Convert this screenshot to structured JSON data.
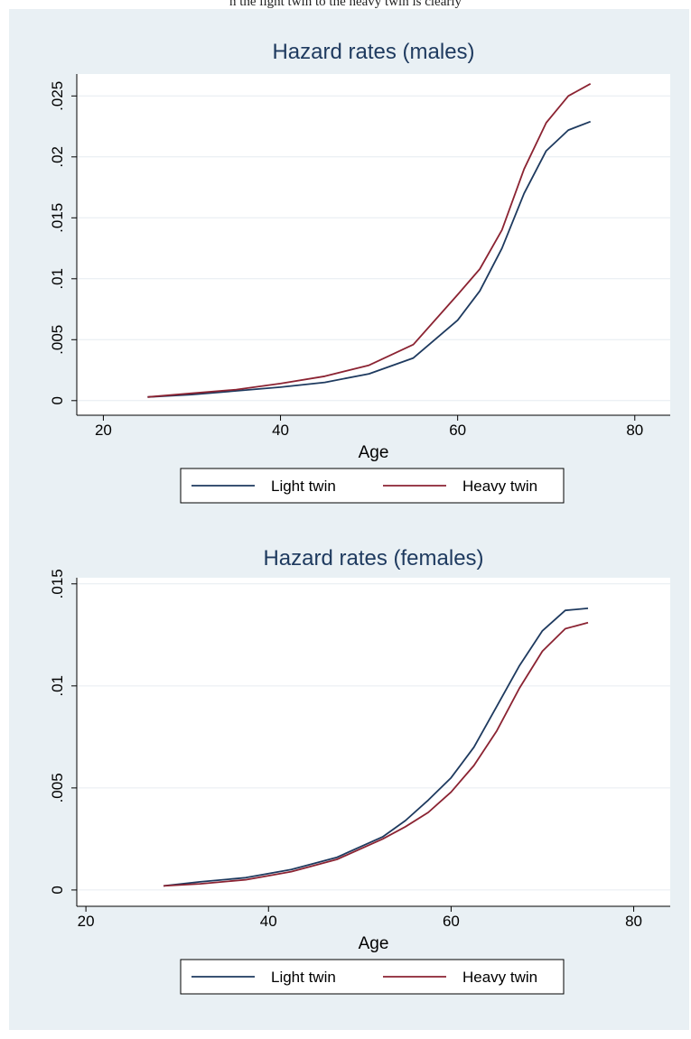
{
  "header_text": "n the light twin to the heavy twin is clearly",
  "colors": {
    "background": "#e9f0f4",
    "plot_bg": "#ffffff",
    "grid": "#e6ecf0",
    "light_twin": "#1e3a5f",
    "heavy_twin": "#8b2332",
    "title": "#1e3a5f"
  },
  "chart_data": [
    {
      "type": "line",
      "title": "Hazard rates (males)",
      "xlabel": "Age",
      "ylabel": "",
      "xlim": [
        17,
        84
      ],
      "ylim": [
        -0.0012,
        0.0268
      ],
      "xticks": [
        20,
        40,
        60,
        80
      ],
      "yticks": [
        0,
        0.005,
        0.01,
        0.015,
        0.02,
        0.025
      ],
      "ytick_labels": [
        "0",
        ".005",
        ".01",
        ".015",
        ".02",
        ".025"
      ],
      "grid": true,
      "legend_position": "bottom",
      "series": [
        {
          "name": "Light twin",
          "x": [
            25,
            30,
            35,
            40,
            45,
            50,
            55,
            60,
            62.5,
            65,
            67.5,
            70,
            72.5,
            75
          ],
          "y": [
            0.0003,
            0.0005,
            0.0008,
            0.0011,
            0.0015,
            0.0022,
            0.0035,
            0.0066,
            0.009,
            0.0125,
            0.017,
            0.0205,
            0.0222,
            0.0229
          ]
        },
        {
          "name": "Heavy twin",
          "x": [
            25,
            30,
            35,
            40,
            45,
            50,
            55,
            60,
            62.5,
            65,
            67.5,
            70,
            72.5,
            75
          ],
          "y": [
            0.0003,
            0.0006,
            0.0009,
            0.0014,
            0.002,
            0.0029,
            0.0046,
            0.0087,
            0.0108,
            0.014,
            0.019,
            0.0228,
            0.025,
            0.026
          ]
        }
      ]
    },
    {
      "type": "line",
      "title": "Hazard rates (females)",
      "xlabel": "Age",
      "ylabel": "",
      "xlim": [
        19,
        84
      ],
      "ylim": [
        -0.0008,
        0.0153
      ],
      "xticks": [
        20,
        40,
        60,
        80
      ],
      "yticks": [
        0,
        0.005,
        0.01,
        0.015
      ],
      "ytick_labels": [
        "0",
        ".005",
        ".01",
        ".015"
      ],
      "grid": true,
      "legend_position": "bottom",
      "series": [
        {
          "name": "Light twin",
          "x": [
            28.5,
            32.5,
            37.5,
            42.5,
            47.5,
            52.5,
            55,
            57.5,
            60,
            62.5,
            65,
            67.5,
            70,
            72.5,
            75
          ],
          "y": [
            0.0002,
            0.0004,
            0.0006,
            0.001,
            0.0016,
            0.0026,
            0.0034,
            0.0044,
            0.0055,
            0.007,
            0.009,
            0.011,
            0.0127,
            0.0137,
            0.0138
          ]
        },
        {
          "name": "Heavy twin",
          "x": [
            28.5,
            32.5,
            37.5,
            42.5,
            47.5,
            52.5,
            55,
            57.5,
            60,
            62.5,
            65,
            67.5,
            70,
            72.5,
            75
          ],
          "y": [
            0.0002,
            0.0003,
            0.0005,
            0.0009,
            0.0015,
            0.0025,
            0.0031,
            0.0038,
            0.0048,
            0.0061,
            0.0078,
            0.0099,
            0.0117,
            0.0128,
            0.0131
          ]
        }
      ]
    }
  ]
}
